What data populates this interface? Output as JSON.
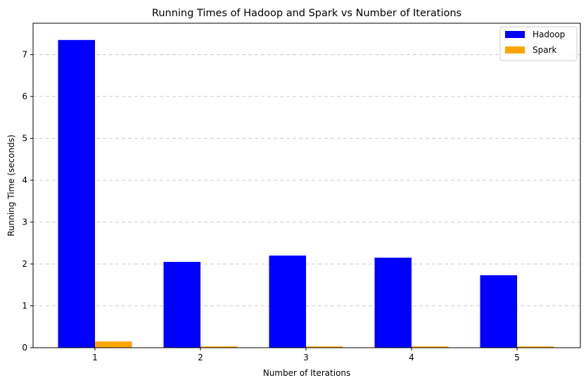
{
  "chart_data": {
    "type": "bar",
    "title": "Running Times of Hadoop and Spark vs Number of Iterations",
    "xlabel": "Number of Iterations",
    "ylabel": "Running Time (seconds)",
    "categories": [
      "1",
      "2",
      "3",
      "4",
      "5"
    ],
    "series": [
      {
        "name": "Hadoop",
        "color": "#0000ff",
        "values": [
          7.35,
          2.05,
          2.2,
          2.15,
          1.73
        ]
      },
      {
        "name": "Spark",
        "color": "#ffa500",
        "values": [
          0.15,
          0.03,
          0.03,
          0.03,
          0.03
        ]
      }
    ],
    "ylim": [
      0,
      7.75
    ],
    "yticks": [
      "0",
      "1",
      "2",
      "3",
      "4",
      "5",
      "6",
      "7"
    ],
    "grid": "y-dashed",
    "legend": "top-right"
  }
}
